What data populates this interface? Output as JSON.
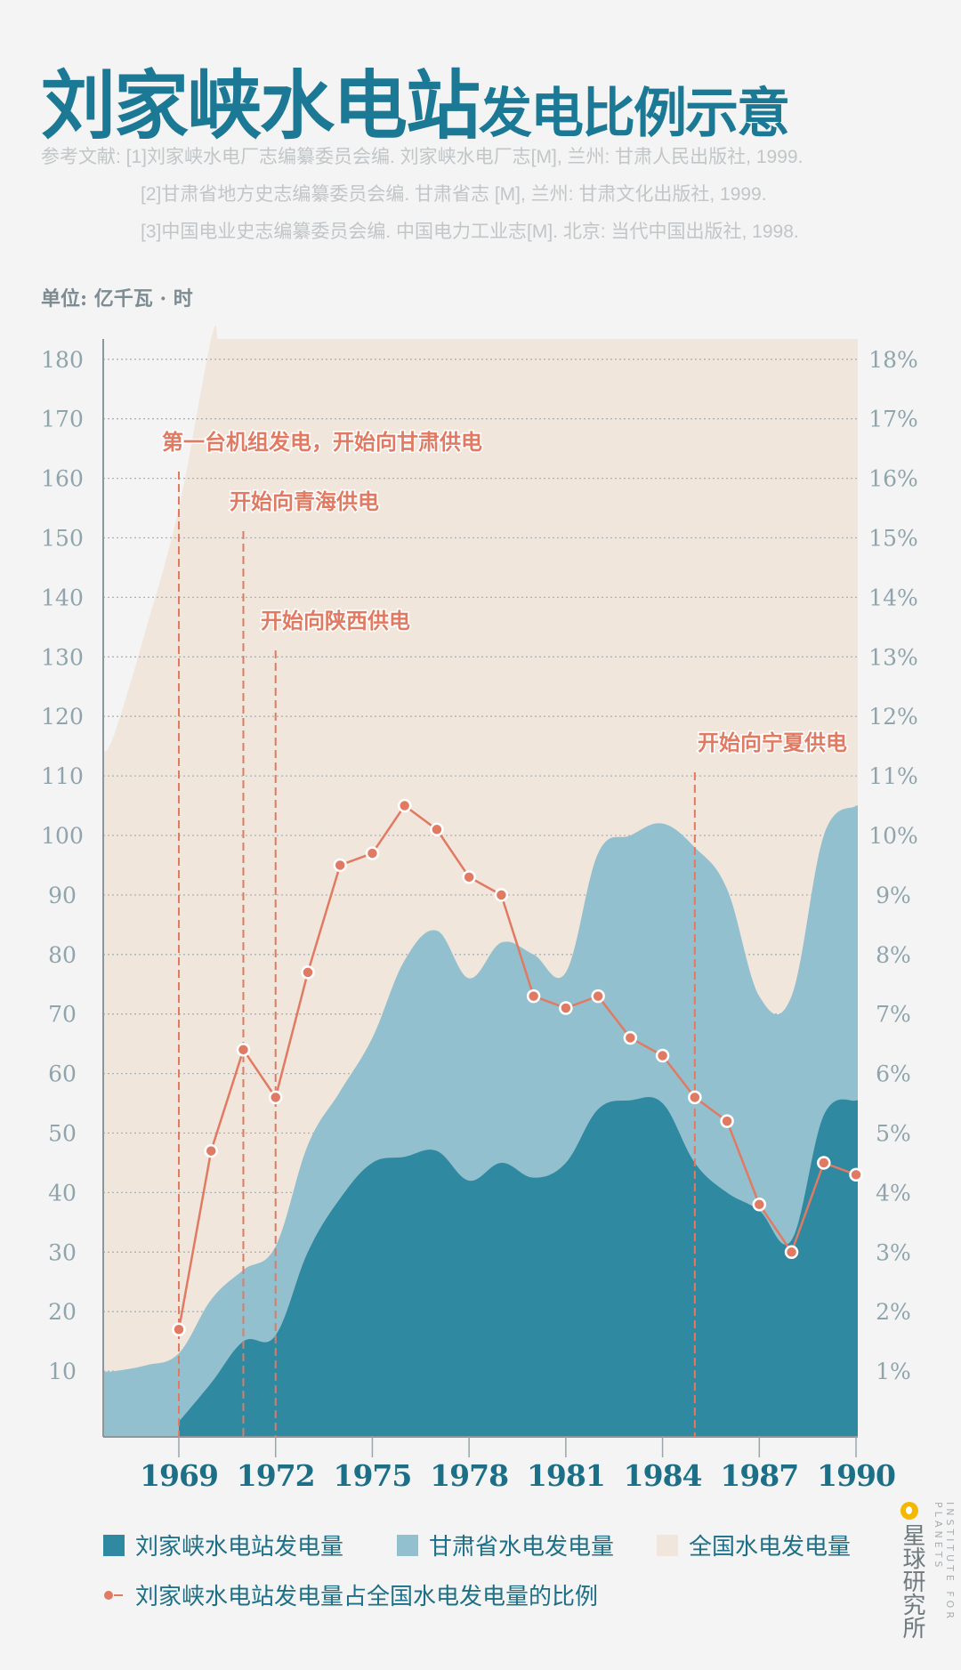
{
  "title": {
    "main": "刘家峡水电站",
    "sub": "发电比例示意"
  },
  "references": [
    "参考文献: [1]刘家峡水电厂志编纂委员会编. 刘家峡水电厂志[M], 兰州: 甘肃人民出版社, 1999.",
    "[2]甘肃省地方史志编纂委员会编. 甘肃省志 [M], 兰州: 甘肃文化出版社, 1999.",
    "[3]中国电业史志编纂委员会编. 中国电力工业志[M]. 北京: 当代中国出版社, 1998."
  ],
  "unit_label": "单位: 亿千瓦 · 时",
  "colors": {
    "title": "#1c7995",
    "liujiaxia": "#2e89a1",
    "gansu": "#93c0ce",
    "national": "#f1e6db",
    "ratio": "#e07a62",
    "background": "#f3f4f3"
  },
  "chart_data": {
    "type": "area",
    "xlim": [
      1967,
      1990
    ],
    "ylim": [
      0,
      180
    ],
    "y2lim": [
      0,
      18
    ],
    "grid": true,
    "x_ticks": [
      1969,
      1972,
      1975,
      1978,
      1981,
      1984,
      1987,
      1990
    ],
    "y_ticks": [
      10,
      20,
      30,
      40,
      50,
      60,
      70,
      80,
      90,
      100,
      110,
      120,
      130,
      140,
      150,
      160,
      170,
      180
    ],
    "y2_ticks": [
      "1%",
      "2%",
      "3%",
      "4%",
      "5%",
      "6%",
      "7%",
      "8%",
      "9%",
      "10%",
      "11%",
      "12%",
      "13%",
      "14%",
      "15%",
      "16%",
      "17%",
      "18%"
    ],
    "series": [
      {
        "name": "全国水电发电量",
        "kind": "area",
        "x": [
          1967,
          1968,
          1969,
          1970
        ],
        "values": [
          117,
          135,
          155,
          205
        ],
        "note_visible": "clipped above 180 from ~1970"
      },
      {
        "name": "甘肃省水电发电量",
        "kind": "area",
        "x": [
          1967,
          1968,
          1969,
          1970,
          1971,
          1972,
          1973,
          1974,
          1975,
          1976,
          1977,
          1978,
          1979,
          1980,
          1981,
          1982,
          1983,
          1984,
          1985,
          1986,
          1987,
          1988,
          1989,
          1990
        ],
        "values": [
          10,
          11,
          13,
          22,
          27,
          31,
          48,
          57,
          66,
          79,
          84,
          76,
          82,
          80,
          77,
          97,
          100,
          102,
          98,
          91,
          73,
          73,
          100,
          105
        ]
      },
      {
        "name": "刘家峡水电站发电量",
        "kind": "area",
        "x": [
          1969,
          1970,
          1971,
          1972,
          1973,
          1974,
          1975,
          1976,
          1977,
          1978,
          1979,
          1980,
          1981,
          1982,
          1983,
          1984,
          1985,
          1986,
          1987,
          1988,
          1989,
          1990
        ],
        "values": [
          1.5,
          8,
          15,
          16,
          30,
          39,
          45,
          46,
          47,
          42,
          45,
          42.5,
          45,
          54,
          55.5,
          55,
          45,
          40,
          37,
          32,
          53,
          55.5
        ]
      },
      {
        "name": "刘家峡水电站发电量占全国水电发电量的比例",
        "kind": "line",
        "unit": "%",
        "x": [
          1969,
          1970,
          1971,
          1972,
          1973,
          1974,
          1975,
          1976,
          1977,
          1978,
          1979,
          1980,
          1981,
          1982,
          1983,
          1984,
          1985,
          1986,
          1987,
          1988,
          1989,
          1990
        ],
        "values": [
          1.7,
          4.7,
          6.4,
          5.6,
          7.7,
          9.5,
          9.7,
          10.5,
          10.1,
          9.3,
          9.0,
          7.3,
          7.1,
          7.3,
          6.6,
          6.3,
          5.6,
          5.2,
          3.8,
          3.0,
          4.5,
          4.3
        ]
      }
    ],
    "annotations": [
      {
        "year": 1969,
        "text": "第一台机组发电，开始向甘肃供电"
      },
      {
        "year": 1971,
        "text": "开始向青海供电"
      },
      {
        "year": 1972,
        "text": "开始向陕西供电"
      },
      {
        "year": 1985,
        "text": "开始向宁夏供电"
      }
    ],
    "legend": [
      "刘家峡水电站发电量",
      "甘肃省水电发电量",
      "全国水电发电量",
      "刘家峡水电站发电量占全国水电发电量的比例"
    ],
    "legend_placement": "bottom"
  },
  "logo": {
    "cn": "星球研究所",
    "en": "INSTITUTE FOR PLANETS"
  }
}
